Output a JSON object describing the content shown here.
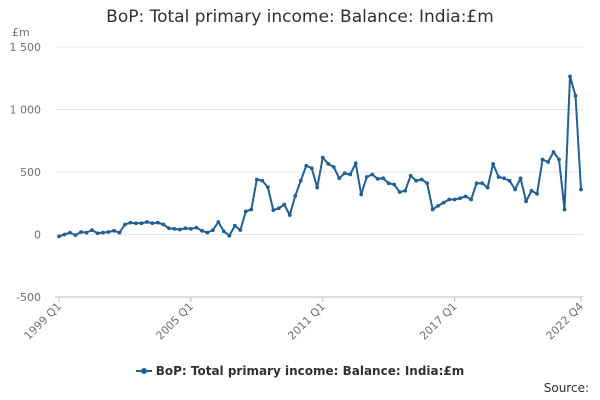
{
  "chart_data": {
    "type": "line",
    "title": "BoP: Total primary income: Balance: India:£m",
    "unit_label": "£m",
    "ylim": [
      -500,
      1500
    ],
    "yticks": [
      -500,
      0,
      500,
      1000,
      1500
    ],
    "ytick_labels": [
      "-500",
      "0",
      "500",
      "1 000",
      "1 500"
    ],
    "xtick_labels": [
      "1999 Q1",
      "2005 Q1",
      "2011 Q1",
      "2017 Q1",
      "2022 Q4"
    ],
    "grid": "horizontal",
    "legend_position": "bottom",
    "series": [
      {
        "name": "BoP: Total primary income: Balance: India:£m",
        "color": "#206095",
        "x": [
          "1999 Q1",
          "1999 Q2",
          "1999 Q3",
          "1999 Q4",
          "2000 Q1",
          "2000 Q2",
          "2000 Q3",
          "2000 Q4",
          "2001 Q1",
          "2001 Q2",
          "2001 Q3",
          "2001 Q4",
          "2002 Q1",
          "2002 Q2",
          "2002 Q3",
          "2002 Q4",
          "2003 Q1",
          "2003 Q2",
          "2003 Q3",
          "2003 Q4",
          "2004 Q1",
          "2004 Q2",
          "2004 Q3",
          "2004 Q4",
          "2005 Q1",
          "2005 Q2",
          "2005 Q3",
          "2005 Q4",
          "2006 Q1",
          "2006 Q2",
          "2006 Q3",
          "2006 Q4",
          "2007 Q1",
          "2007 Q2",
          "2007 Q3",
          "2007 Q4",
          "2008 Q1",
          "2008 Q2",
          "2008 Q3",
          "2008 Q4",
          "2009 Q1",
          "2009 Q2",
          "2009 Q3",
          "2009 Q4",
          "2010 Q1",
          "2010 Q2",
          "2010 Q3",
          "2010 Q4",
          "2011 Q1",
          "2011 Q2",
          "2011 Q3",
          "2011 Q4",
          "2012 Q1",
          "2012 Q2",
          "2012 Q3",
          "2012 Q4",
          "2013 Q1",
          "2013 Q2",
          "2013 Q3",
          "2013 Q4",
          "2014 Q1",
          "2014 Q2",
          "2014 Q3",
          "2014 Q4",
          "2015 Q1",
          "2015 Q2",
          "2015 Q3",
          "2015 Q4",
          "2016 Q1",
          "2016 Q2",
          "2016 Q3",
          "2016 Q4",
          "2017 Q1",
          "2017 Q2",
          "2017 Q3",
          "2017 Q4",
          "2018 Q1",
          "2018 Q2",
          "2018 Q3",
          "2018 Q4",
          "2019 Q1",
          "2019 Q2",
          "2019 Q3",
          "2019 Q4",
          "2020 Q1",
          "2020 Q2",
          "2020 Q3",
          "2020 Q4",
          "2021 Q1",
          "2021 Q2",
          "2021 Q3",
          "2021 Q4",
          "2022 Q1",
          "2022 Q2",
          "2022 Q3",
          "2022 Q4"
        ],
        "values": [
          -15,
          0,
          15,
          -5,
          20,
          15,
          35,
          10,
          15,
          20,
          30,
          15,
          80,
          95,
          90,
          90,
          100,
          90,
          95,
          80,
          50,
          45,
          40,
          50,
          45,
          55,
          30,
          15,
          35,
          100,
          25,
          -10,
          70,
          35,
          185,
          200,
          440,
          430,
          380,
          195,
          210,
          240,
          155,
          310,
          430,
          550,
          530,
          375,
          615,
          565,
          540,
          450,
          490,
          480,
          570,
          320,
          460,
          480,
          445,
          450,
          410,
          400,
          340,
          350,
          470,
          430,
          440,
          410,
          200,
          230,
          255,
          280,
          280,
          290,
          305,
          280,
          410,
          410,
          375,
          565,
          460,
          450,
          430,
          360,
          450,
          265,
          350,
          325,
          600,
          580,
          660,
          600,
          200,
          1265,
          1110,
          360
        ]
      }
    ]
  },
  "legend_label": "BoP: Total primary income: Balance: India:£m",
  "source_label": "Source:"
}
